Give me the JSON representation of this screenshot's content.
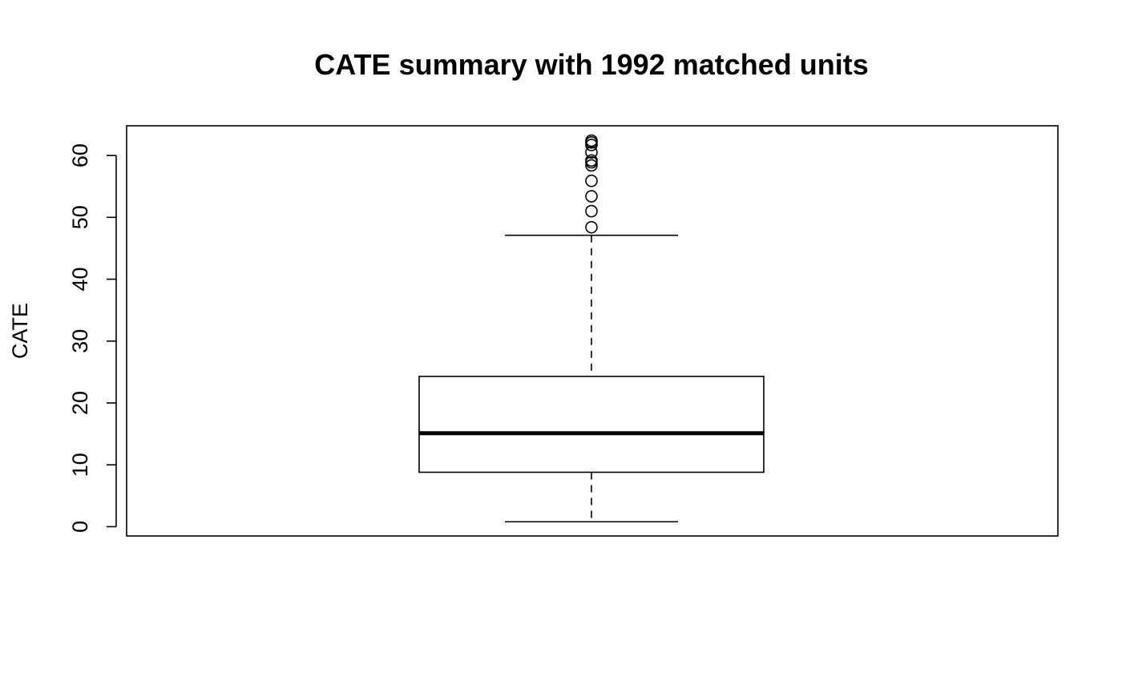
{
  "chart_data": {
    "type": "boxplot",
    "title": "CATE summary with 1992 matched units",
    "xlabel": "",
    "ylabel": "CATE",
    "ylim": [
      -1.5,
      64.8
    ],
    "yticks": [
      0,
      10,
      20,
      30,
      40,
      50,
      60
    ],
    "grid": false,
    "legend": "none",
    "box": {
      "whisker_low": 0.8,
      "q1": 8.8,
      "median": 15.1,
      "q3": 24.3,
      "whisker_high": 47.1
    },
    "outliers": [
      48.4,
      51.0,
      53.4,
      55.9,
      58.4,
      58.9,
      59.2,
      60.5,
      61.7,
      62.1,
      62.4
    ]
  },
  "colors": {
    "stroke": "#000000",
    "background": "#ffffff"
  }
}
